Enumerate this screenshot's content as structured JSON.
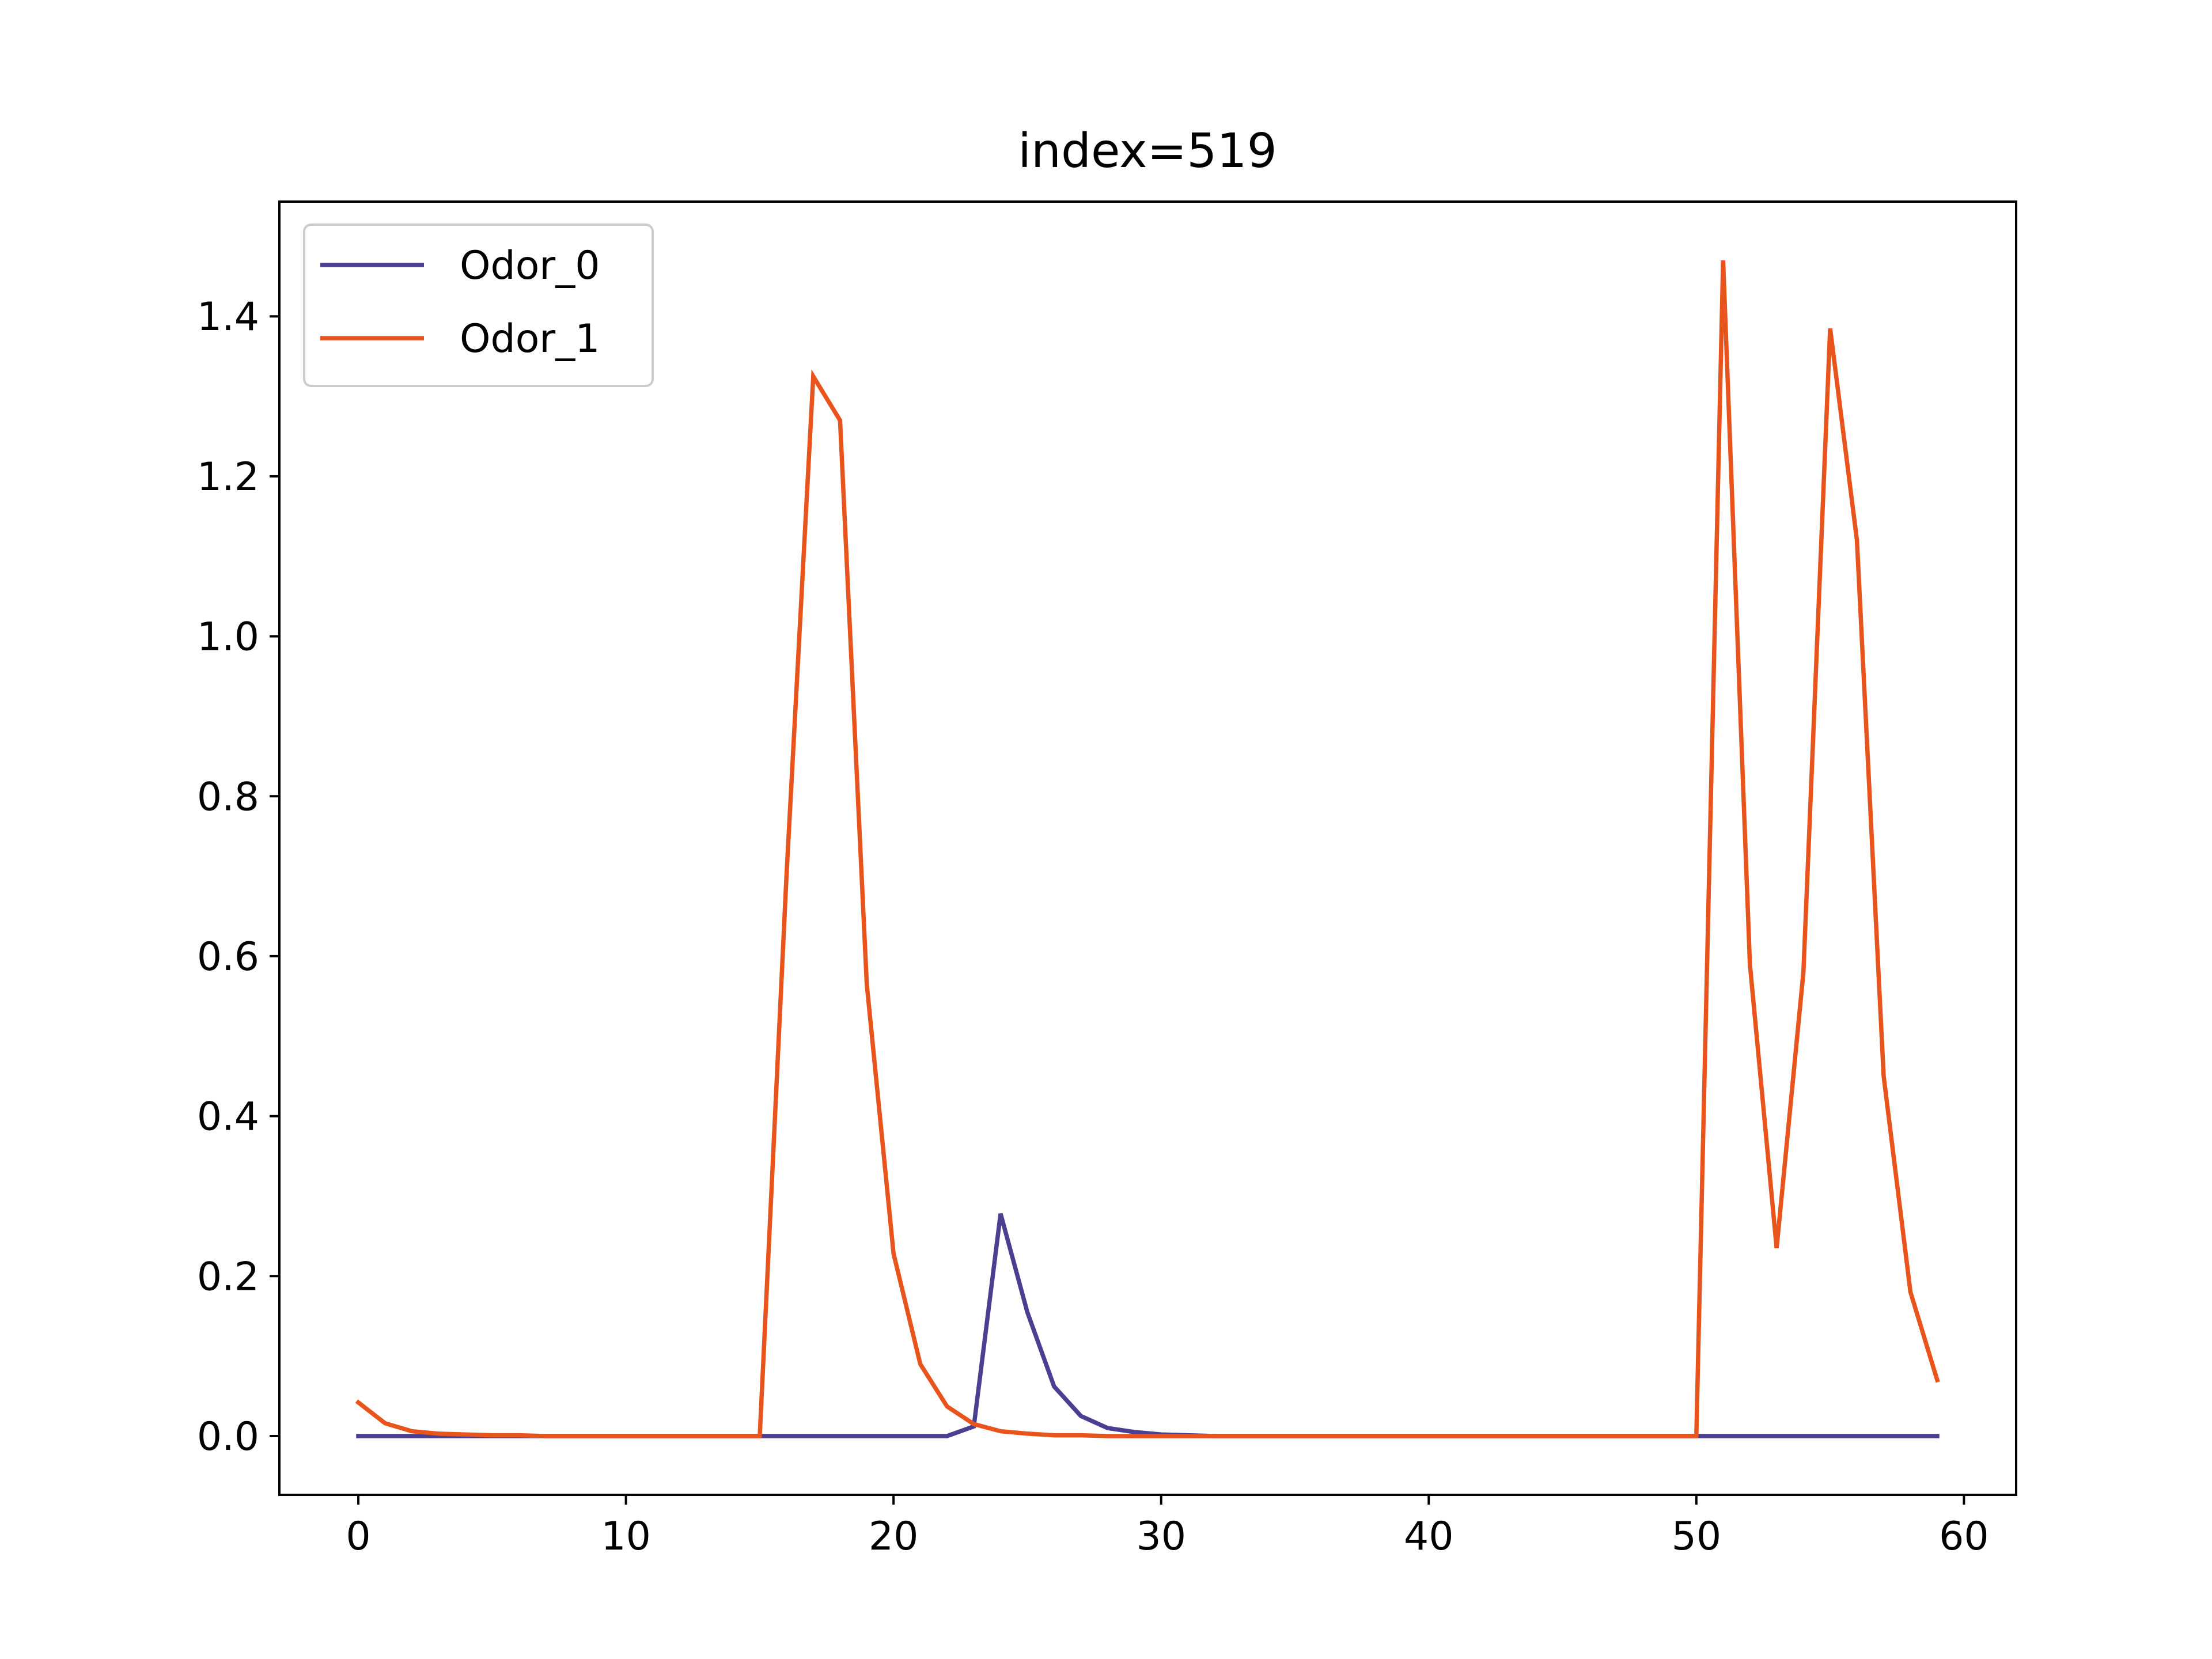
{
  "chart_data": {
    "type": "line",
    "title": "index=519",
    "xlabel": "",
    "ylabel": "",
    "xlim": [
      -2.95,
      61.95
    ],
    "ylim": [
      -0.0735,
      1.5435
    ],
    "xticks": [
      0,
      10,
      20,
      30,
      40,
      50,
      60
    ],
    "yticks": [
      0.0,
      0.2,
      0.4,
      0.6,
      0.8,
      1.0,
      1.2,
      1.4
    ],
    "ytick_labels": [
      "0.0",
      "0.2",
      "0.4",
      "0.6",
      "0.8",
      "1.0",
      "1.2",
      "1.4"
    ],
    "grid": false,
    "legend_position": "upper-left",
    "x": [
      0,
      1,
      2,
      3,
      4,
      5,
      6,
      7,
      8,
      9,
      10,
      11,
      12,
      13,
      14,
      15,
      16,
      17,
      18,
      19,
      20,
      21,
      22,
      23,
      24,
      25,
      26,
      27,
      28,
      29,
      30,
      31,
      32,
      33,
      34,
      35,
      36,
      37,
      38,
      39,
      40,
      41,
      42,
      43,
      44,
      45,
      46,
      47,
      48,
      49,
      50,
      51,
      52,
      53,
      54,
      55,
      56,
      57,
      58,
      59
    ],
    "series": [
      {
        "name": "Odor_0",
        "color": "#4b3f92",
        "values": [
          0,
          0,
          0,
          0,
          0,
          0,
          0,
          0,
          0,
          0,
          0,
          0,
          0,
          0,
          0,
          0,
          0,
          0,
          0,
          0,
          0,
          0,
          0,
          0.012,
          0.278,
          0.155,
          0.062,
          0.025,
          0.01,
          0.005,
          0.002,
          0.001,
          0,
          0,
          0,
          0,
          0,
          0,
          0,
          0,
          0,
          0,
          0,
          0,
          0,
          0,
          0,
          0,
          0,
          0,
          0,
          0,
          0,
          0,
          0,
          0,
          0,
          0,
          0,
          0
        ]
      },
      {
        "name": "Odor_1",
        "color": "#e8541c",
        "values": [
          0.042,
          0.016,
          0.006,
          0.003,
          0.002,
          0.001,
          0.001,
          0,
          0,
          0,
          0,
          0,
          0,
          0,
          0,
          0,
          0.7,
          1.325,
          1.27,
          0.565,
          0.228,
          0.09,
          0.037,
          0.015,
          0.006,
          0.003,
          0.001,
          0.001,
          0,
          0,
          0,
          0,
          0,
          0,
          0,
          0,
          0,
          0,
          0,
          0,
          0,
          0,
          0,
          0,
          0,
          0,
          0,
          0,
          0,
          0,
          0,
          1.47,
          0.59,
          0.235,
          0.58,
          1.385,
          1.12,
          0.45,
          0.18,
          0.07
        ]
      }
    ]
  }
}
